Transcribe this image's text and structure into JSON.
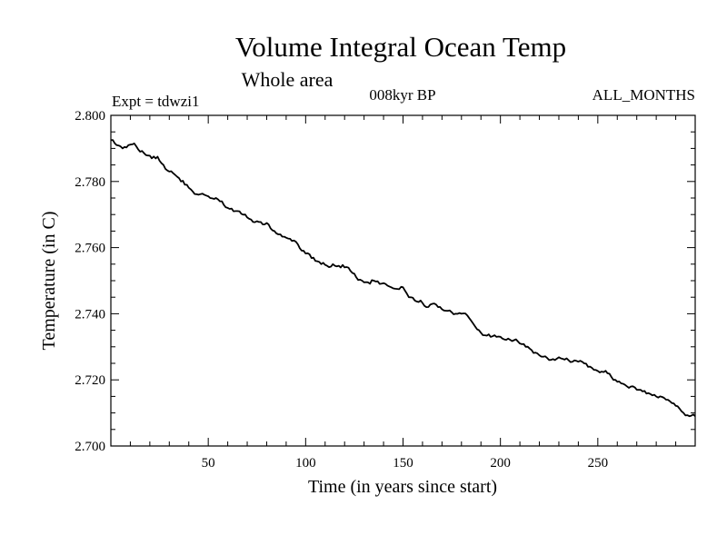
{
  "chart_data": {
    "type": "line",
    "title": "Volume Integral Ocean Temp",
    "subtitle": "Whole area",
    "experiment_label": "Expt = tdwzi1",
    "period_label": "008kyr BP",
    "months_label": "ALL_MONTHS",
    "xlabel": "Time (in years since start)",
    "ylabel": "Temperature (in C)",
    "xlim": [
      0,
      300
    ],
    "ylim": [
      2.7,
      2.8
    ],
    "x_tick_labels": [
      "50",
      "100",
      "150",
      "200",
      "250"
    ],
    "y_tick_labels": [
      "2.700",
      "2.720",
      "2.740",
      "2.760",
      "2.780",
      "2.800"
    ],
    "series": [
      {
        "name": "Volume Integral Ocean Temp",
        "color": "#000000",
        "x": [
          0,
          3,
          6,
          9,
          12,
          15,
          18,
          21,
          24,
          27,
          30,
          33,
          36,
          39,
          42,
          45,
          48,
          51,
          54,
          57,
          60,
          63,
          66,
          69,
          72,
          75,
          78,
          81,
          84,
          87,
          90,
          93,
          96,
          99,
          102,
          105,
          108,
          111,
          114,
          117,
          120,
          123,
          126,
          129,
          132,
          135,
          138,
          141,
          144,
          147,
          150,
          153,
          156,
          159,
          162,
          165,
          168,
          171,
          174,
          177,
          180,
          183,
          186,
          189,
          192,
          195,
          198,
          201,
          204,
          207,
          210,
          213,
          216,
          219,
          222,
          225,
          228,
          231,
          234,
          237,
          240,
          243,
          246,
          249,
          252,
          255,
          258,
          261,
          264,
          267,
          270,
          273,
          276,
          279,
          282,
          285,
          288,
          291,
          294,
          297,
          300
        ],
        "y": [
          2.7925,
          2.791,
          2.79,
          2.791,
          2.7915,
          2.789,
          2.788,
          2.787,
          2.7875,
          2.785,
          2.783,
          2.782,
          2.78,
          2.779,
          2.777,
          2.776,
          2.776,
          2.775,
          2.775,
          2.774,
          2.772,
          2.771,
          2.771,
          2.77,
          2.7685,
          2.768,
          2.767,
          2.767,
          2.765,
          2.764,
          2.763,
          2.762,
          2.761,
          2.759,
          2.758,
          2.756,
          2.755,
          2.7545,
          2.755,
          2.7545,
          2.754,
          2.753,
          2.751,
          2.75,
          2.7495,
          2.75,
          2.749,
          2.749,
          2.748,
          2.7475,
          2.748,
          2.745,
          2.744,
          2.744,
          2.742,
          2.743,
          2.742,
          2.741,
          2.741,
          2.74,
          2.74,
          2.7395,
          2.737,
          2.735,
          2.7335,
          2.733,
          2.733,
          2.7325,
          2.7325,
          2.732,
          2.731,
          2.73,
          2.729,
          2.728,
          2.727,
          2.726,
          2.726,
          2.7265,
          2.7265,
          2.7255,
          2.7255,
          2.725,
          2.724,
          2.723,
          2.7225,
          2.722,
          2.72,
          2.7195,
          2.7185,
          2.718,
          2.717,
          2.7165,
          2.716,
          2.7155,
          2.715,
          2.714,
          2.713,
          2.712,
          2.71,
          2.709,
          2.709
        ]
      }
    ],
    "grid": false,
    "legend": "none"
  }
}
